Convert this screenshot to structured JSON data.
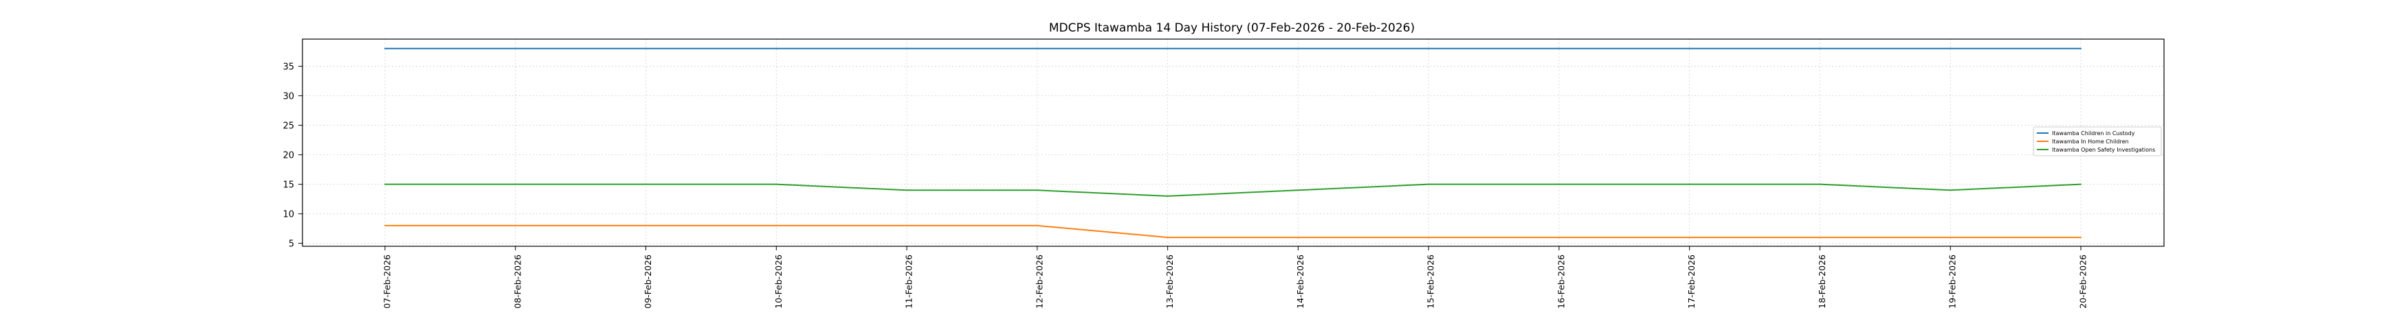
{
  "chart_data": {
    "type": "line",
    "title": "MDCPS Itawamba 14 Day History (07-Feb-2026 - 20-Feb-2026)",
    "xlabel": "",
    "ylabel": "",
    "x": [
      "07-Feb-2026",
      "08-Feb-2026",
      "09-Feb-2026",
      "10-Feb-2026",
      "11-Feb-2026",
      "12-Feb-2026",
      "13-Feb-2026",
      "14-Feb-2026",
      "15-Feb-2026",
      "16-Feb-2026",
      "17-Feb-2026",
      "18-Feb-2026",
      "19-Feb-2026",
      "20-Feb-2026"
    ],
    "yticks": [
      5,
      10,
      15,
      20,
      25,
      30,
      35
    ],
    "ylim": [
      4.5,
      39.6
    ],
    "grid": true,
    "legend_position": "center-right",
    "series": [
      {
        "name": "Itawamba Children in Custody",
        "color": "#1f77b4",
        "values": [
          38,
          38,
          38,
          38,
          38,
          38,
          38,
          38,
          38,
          38,
          38,
          38,
          38,
          38
        ]
      },
      {
        "name": "Itawamba In Home Children",
        "color": "#ff7f0e",
        "values": [
          8,
          8,
          8,
          8,
          8,
          8,
          6,
          6,
          6,
          6,
          6,
          6,
          6,
          6
        ]
      },
      {
        "name": "Itawamba Open Safety Investigations",
        "color": "#2ca02c",
        "values": [
          15,
          15,
          15,
          15,
          14,
          14,
          13,
          14,
          15,
          15,
          15,
          15,
          14,
          15
        ]
      }
    ]
  }
}
